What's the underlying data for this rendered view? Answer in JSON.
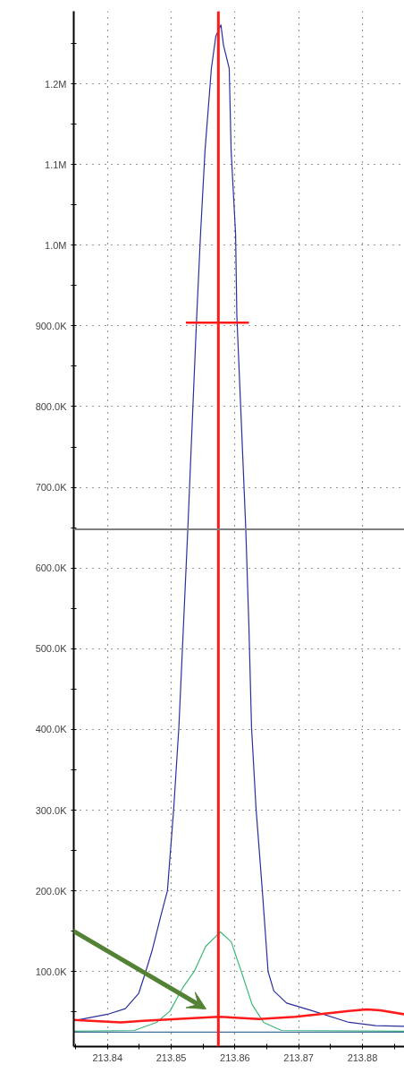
{
  "chart_data": {
    "type": "line",
    "xlim": [
      213.8347,
      213.8866
    ],
    "ylim": [
      7000,
      1290000
    ],
    "xticks": [
      {
        "value": 213.835,
        "label": null
      },
      213.84,
      {
        "value": 213.845,
        "label": null
      },
      213.85,
      {
        "value": 213.855,
        "label": null
      },
      213.86,
      {
        "value": 213.865,
        "label": null
      },
      213.87,
      {
        "value": 213.875,
        "label": null
      },
      213.88,
      {
        "value": 213.885,
        "label": null
      }
    ],
    "yticks": [
      {
        "value": 50000,
        "label": null
      },
      {
        "value": 100000,
        "label": "100.0K"
      },
      {
        "value": 150000,
        "label": null
      },
      {
        "value": 200000,
        "label": "200.0K"
      },
      {
        "value": 250000,
        "label": null
      },
      {
        "value": 300000,
        "label": "300.0K"
      },
      {
        "value": 350000,
        "label": null
      },
      {
        "value": 400000,
        "label": "400.0K"
      },
      {
        "value": 450000,
        "label": null
      },
      {
        "value": 500000,
        "label": "500.0K"
      },
      {
        "value": 550000,
        "label": null
      },
      {
        "value": 600000,
        "label": "600.0K"
      },
      {
        "value": 650000,
        "label": null
      },
      {
        "value": 700000,
        "label": "700.0K"
      },
      {
        "value": 750000,
        "label": null
      },
      {
        "value": 800000,
        "label": "800.0K"
      },
      {
        "value": 850000,
        "label": null
      },
      {
        "value": 900000,
        "label": "900.0K"
      },
      {
        "value": 950000,
        "label": null
      },
      {
        "value": 1000000,
        "label": "1.0M"
      },
      {
        "value": 1050000,
        "label": null
      },
      {
        "value": 1100000,
        "label": "1.1M"
      },
      {
        "value": 1150000,
        "label": null
      },
      {
        "value": 1200000,
        "label": "1.2M"
      },
      {
        "value": 1250000,
        "label": null
      }
    ],
    "grid": true,
    "series": [
      {
        "color": "#2b2f9e",
        "x": [
          213.8347,
          213.84,
          213.8428,
          213.8449,
          213.846,
          213.847,
          213.8484,
          213.8494,
          213.8504,
          213.8512,
          213.8519,
          213.8526,
          213.8533,
          213.854,
          213.8546,
          213.8553,
          213.8563,
          213.857,
          213.8578,
          213.8582,
          213.8591,
          213.8594,
          213.8601,
          213.8603,
          213.861,
          213.8617,
          213.8622,
          213.8626,
          213.8633,
          213.8643,
          213.8652,
          213.8661,
          213.8681,
          213.8723,
          213.8779,
          213.8821,
          213.8866
        ],
        "values": [
          39000,
          47000,
          54000,
          73000,
          100000,
          126000,
          170000,
          200000,
          303000,
          403000,
          525000,
          648000,
          781000,
          912000,
          1014000,
          1117000,
          1219000,
          1259000,
          1273000,
          1248000,
          1219000,
          1117000,
          1014000,
          912000,
          781000,
          648000,
          525000,
          403000,
          303000,
          200000,
          100000,
          76000,
          61000,
          51000,
          37000,
          33000,
          32000
        ]
      },
      {
        "color": "#3cb878",
        "x": [
          213.8347,
          213.8442,
          213.8477,
          213.8498,
          213.8519,
          213.8536,
          213.8554,
          213.8577,
          213.8594,
          213.861,
          213.8627,
          213.8645,
          213.8673,
          213.8866
        ],
        "values": [
          26000,
          27000,
          37000,
          51000,
          81000,
          100000,
          131000,
          149000,
          137000,
          100000,
          59000,
          37000,
          27000,
          26000
        ]
      },
      {
        "color": "#3c6e9e",
        "x": [
          213.8347,
          213.8866
        ],
        "values": [
          25000,
          25000
        ]
      },
      {
        "color": "#ff1a1a",
        "x": [
          213.8347,
          213.8421,
          213.8456,
          213.8574,
          213.8638,
          213.8695,
          213.8744,
          213.8779,
          213.8807,
          213.8828,
          213.8866
        ],
        "values": [
          40000,
          37000,
          39000,
          44000,
          41000,
          44000,
          48000,
          51000,
          53000,
          52000,
          47000
        ]
      },
      {
        "color": "#ff1a1a",
        "x": [
          213.8523,
          213.8622
        ],
        "values": [
          904000,
          904000
        ]
      }
    ],
    "ref_lines": [
      {
        "axis": "x",
        "value": 213.8574,
        "color": "#ff1a1a"
      },
      {
        "axis": "y",
        "value": 648000,
        "color": "#808080"
      }
    ]
  }
}
